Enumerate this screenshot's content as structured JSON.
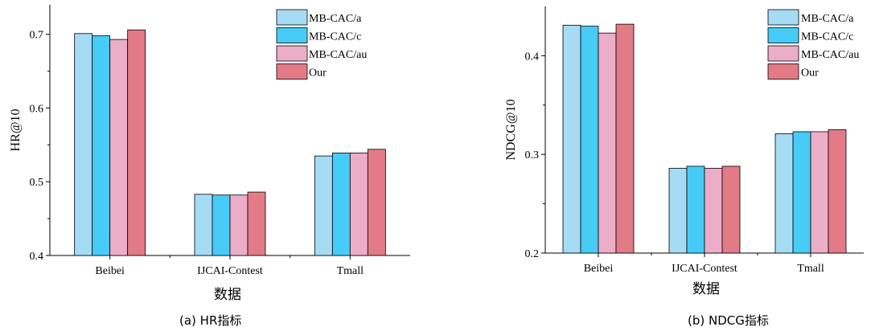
{
  "colors": {
    "MB-CAC/a": "#a6dcf3",
    "MB-CAC/c": "#47cbf7",
    "MB-CAC/au": "#ebadc7",
    "Our": "#e37b86"
  },
  "chart_data": [
    {
      "type": "bar",
      "caption": "(a) HR指标",
      "xlabel": "数据",
      "ylabel": "HR@10",
      "categories": [
        "Beibei",
        "IJCAI-Contest",
        "Tmall"
      ],
      "ylim": [
        0.4,
        0.74
      ],
      "yticks": [
        0.4,
        0.5,
        0.6,
        0.7
      ],
      "ytick_labels": [
        "0.4",
        "0.5",
        "0.6",
        "0.7"
      ],
      "legend_position": "top-right",
      "series": [
        {
          "name": "MB-CAC/a",
          "values": [
            0.701,
            0.483,
            0.535
          ]
        },
        {
          "name": "MB-CAC/c",
          "values": [
            0.698,
            0.482,
            0.539
          ]
        },
        {
          "name": "MB-CAC/au",
          "values": [
            0.693,
            0.482,
            0.539
          ]
        },
        {
          "name": "Our",
          "values": [
            0.706,
            0.486,
            0.544
          ]
        }
      ]
    },
    {
      "type": "bar",
      "caption": "(b) NDCG指标",
      "xlabel": "数据",
      "ylabel": "NDCG@10",
      "categories": [
        "Beibei",
        "IJCAI-Contest",
        "Tmall"
      ],
      "ylim": [
        0.2,
        0.45
      ],
      "yticks": [
        0.2,
        0.3,
        0.4
      ],
      "ytick_labels": [
        "0.2",
        "0.3",
        "0.4"
      ],
      "legend_position": "top-right",
      "series": [
        {
          "name": "MB-CAC/a",
          "values": [
            0.431,
            0.286,
            0.321
          ]
        },
        {
          "name": "MB-CAC/c",
          "values": [
            0.43,
            0.288,
            0.323
          ]
        },
        {
          "name": "MB-CAC/au",
          "values": [
            0.423,
            0.286,
            0.323
          ]
        },
        {
          "name": "Our",
          "values": [
            0.432,
            0.288,
            0.325
          ]
        }
      ]
    }
  ]
}
